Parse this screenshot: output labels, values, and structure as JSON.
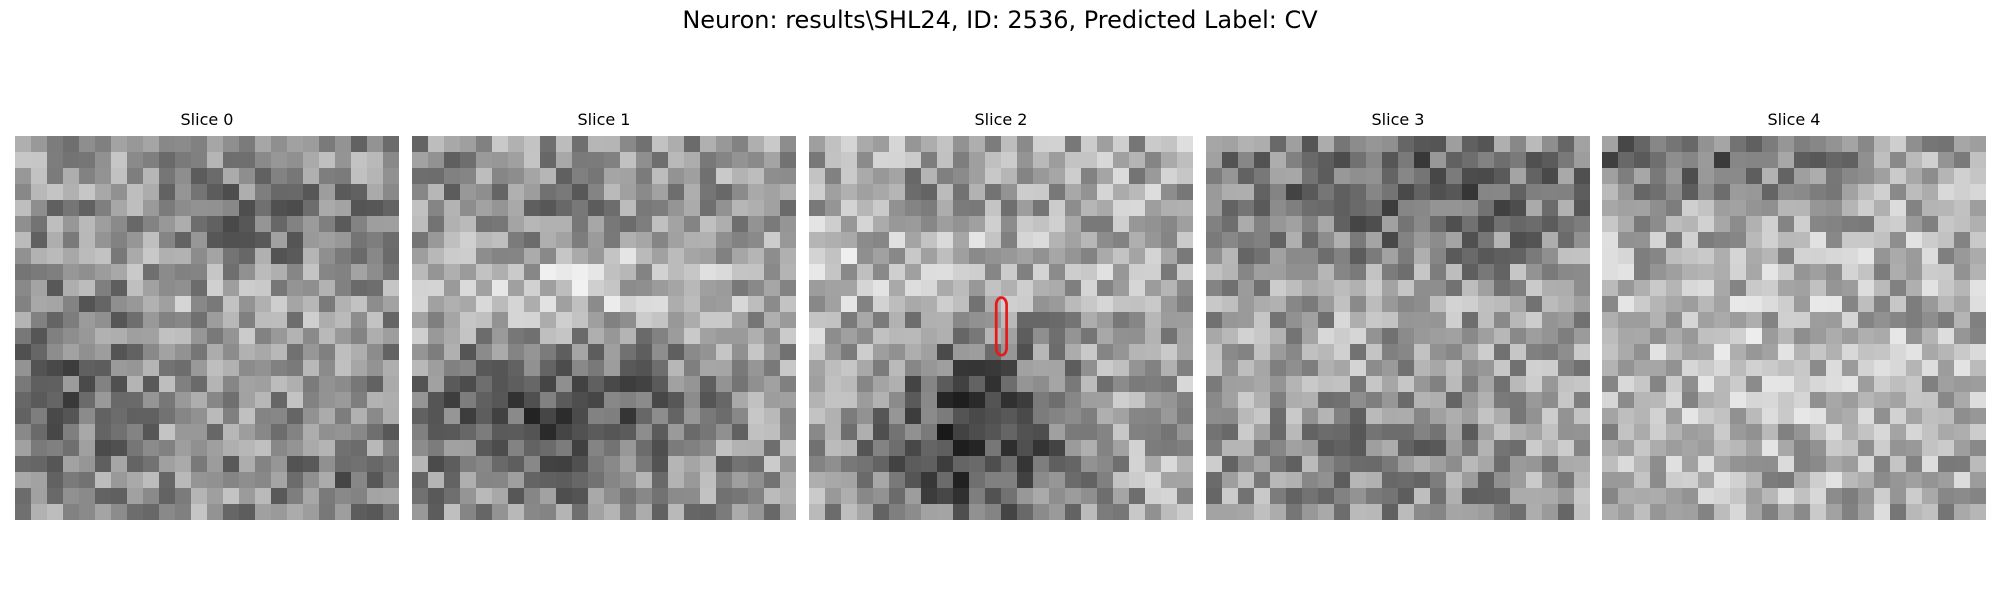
{
  "figure": {
    "title": "Neuron: results\\SHL24, ID: 2536, Predicted Label: CV"
  },
  "panels": [
    {
      "title": "Slice 0"
    },
    {
      "title": "Slice 1"
    },
    {
      "title": "Slice 2"
    },
    {
      "title": "Slice 3"
    },
    {
      "title": "Slice 4"
    }
  ],
  "colors": {
    "contour": "#e41a1c",
    "colormap": "gray"
  }
}
